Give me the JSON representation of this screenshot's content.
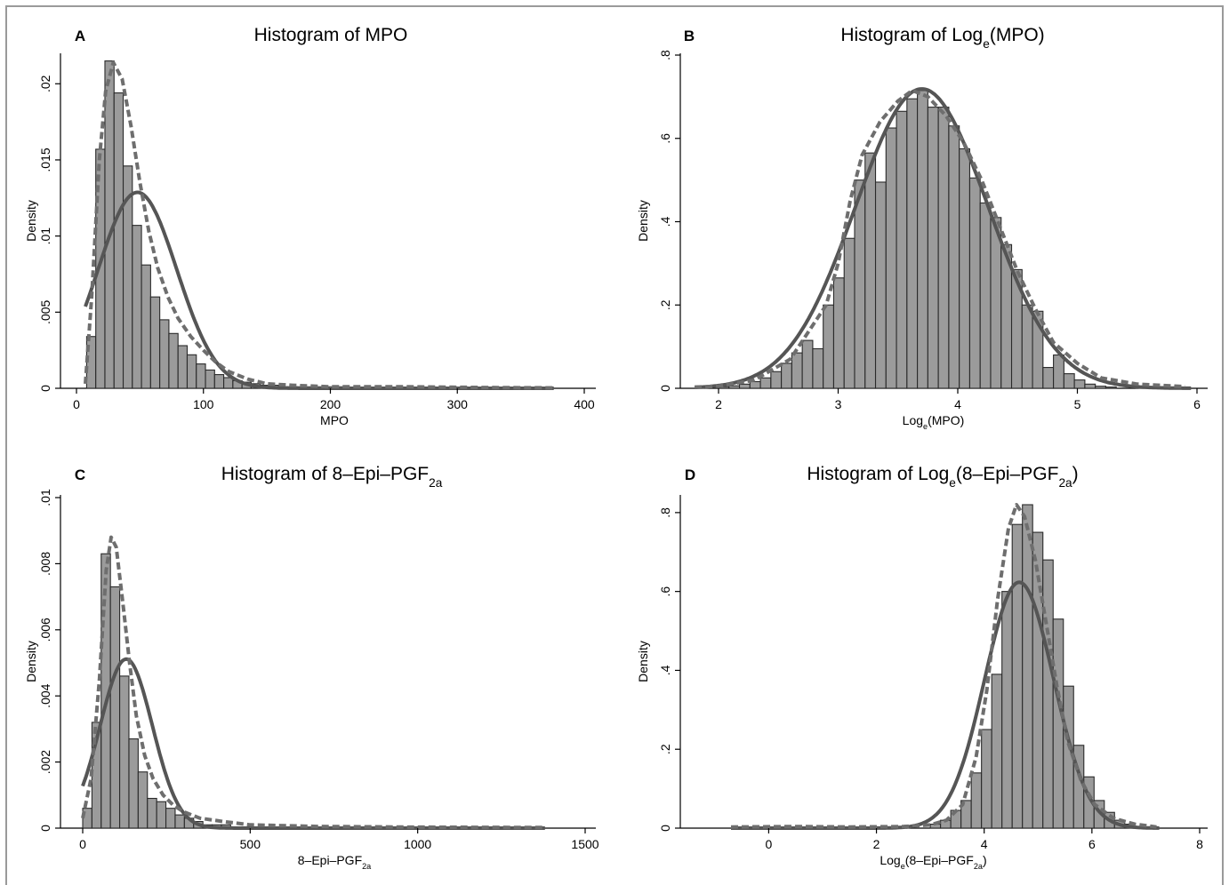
{
  "figure": {
    "panels": [
      {
        "letter": "A",
        "title_parts": [
          "Histogram of MPO"
        ],
        "xlabel_parts": [
          "MPO"
        ]
      },
      {
        "letter": "B",
        "title_parts": [
          "Histogram of Log",
          "e",
          "(MPO)"
        ],
        "xlabel_parts": [
          "Log",
          "e",
          "(MPO)"
        ]
      },
      {
        "letter": "C",
        "title_parts": [
          "Histogram of 8–Epi–PGF",
          "2a",
          ""
        ],
        "xlabel_parts": [
          "8–Epi–PGF",
          "2a",
          ""
        ]
      },
      {
        "letter": "D",
        "title_parts": [
          "Histogram of Log",
          "e",
          "(8–Epi–PGF",
          "2a",
          ")"
        ],
        "xlabel_parts": [
          "Log",
          "e",
          "(8–Epi–PGF",
          "2a",
          ")"
        ]
      }
    ]
  },
  "colors": {
    "bar_fill": "#9b9b9b",
    "bar_stroke": "#2a2a2a",
    "normal_curve": "#555555",
    "kde_curve": "#6e6e6e"
  },
  "chart_data": [
    {
      "type": "bar",
      "panel": "A",
      "title": "Histogram of MPO",
      "xlabel": "MPO",
      "ylabel": "Density",
      "xlim": [
        0,
        400
      ],
      "ylim": [
        0,
        0.022
      ],
      "xticks": [
        0,
        100,
        200,
        300,
        400
      ],
      "yticks": [
        0,
        0.005,
        0.01,
        0.015,
        0.02
      ],
      "ytick_labels": [
        "0",
        ".005",
        ".01",
        ".015",
        ".02"
      ],
      "bin_start": 8,
      "bin_width": 7.2,
      "values": [
        0.0034,
        0.0157,
        0.0215,
        0.0194,
        0.0146,
        0.0107,
        0.0081,
        0.006,
        0.0045,
        0.0036,
        0.0028,
        0.0022,
        0.0016,
        0.0012,
        0.0009,
        0.0007,
        0.0005,
        0.0004,
        0.0003,
        0.0002,
        0.0002,
        0.0001,
        0.0001,
        0.0001,
        0.0001,
        0.0001,
        0.0001,
        0.0001
      ],
      "normal_mean": 48,
      "normal_sd": 31,
      "kde_points": [
        [
          7,
          0.0003
        ],
        [
          12,
          0.006
        ],
        [
          18,
          0.015
        ],
        [
          23,
          0.0195
        ],
        [
          29,
          0.0214
        ],
        [
          36,
          0.0203
        ],
        [
          43,
          0.0172
        ],
        [
          50,
          0.0135
        ],
        [
          57,
          0.0103
        ],
        [
          64,
          0.0079
        ],
        [
          72,
          0.006
        ],
        [
          80,
          0.0046
        ],
        [
          90,
          0.0034
        ],
        [
          100,
          0.0025
        ],
        [
          110,
          0.0017
        ],
        [
          120,
          0.0011
        ],
        [
          135,
          0.0006
        ],
        [
          150,
          0.0003
        ],
        [
          170,
          0.0002
        ],
        [
          200,
          0.0001
        ],
        [
          260,
          0.0001
        ],
        [
          320,
          5e-05
        ],
        [
          376,
          3e-05
        ]
      ]
    },
    {
      "type": "bar",
      "panel": "B",
      "title": "Histogram of Loge(MPO)",
      "xlabel": "Loge(MPO)",
      "ylabel": "Density",
      "xlim": [
        2,
        6
      ],
      "ylim": [
        0,
        0.8
      ],
      "xticks": [
        2,
        3,
        4,
        5,
        6
      ],
      "yticks": [
        0,
        0.2,
        0.4,
        0.6,
        0.8
      ],
      "ytick_labels": [
        "0",
        ".2",
        ".4",
        ".6",
        ".8"
      ],
      "bin_start": 2.0,
      "bin_width": 0.0875,
      "values": [
        0.004,
        0.006,
        0.01,
        0.016,
        0.025,
        0.04,
        0.06,
        0.085,
        0.115,
        0.095,
        0.2,
        0.265,
        0.36,
        0.5,
        0.565,
        0.495,
        0.625,
        0.665,
        0.695,
        0.715,
        0.675,
        0.675,
        0.63,
        0.575,
        0.505,
        0.445,
        0.41,
        0.345,
        0.285,
        0.2,
        0.185,
        0.05,
        0.08,
        0.035,
        0.02,
        0.01,
        0.005,
        0.003
      ],
      "normal_mean": 3.7,
      "normal_sd": 0.555,
      "kde_points": [
        [
          1.8,
          0.003
        ],
        [
          2.0,
          0.005
        ],
        [
          2.3,
          0.02
        ],
        [
          2.6,
          0.07
        ],
        [
          2.9,
          0.2
        ],
        [
          3.0,
          0.3
        ],
        [
          3.1,
          0.45
        ],
        [
          3.2,
          0.56
        ],
        [
          3.35,
          0.64
        ],
        [
          3.5,
          0.69
        ],
        [
          3.62,
          0.715
        ],
        [
          3.75,
          0.7
        ],
        [
          3.9,
          0.655
        ],
        [
          4.05,
          0.59
        ],
        [
          4.2,
          0.5
        ],
        [
          4.35,
          0.39
        ],
        [
          4.5,
          0.28
        ],
        [
          4.65,
          0.19
        ],
        [
          4.8,
          0.11
        ],
        [
          5.0,
          0.06
        ],
        [
          5.2,
          0.025
        ],
        [
          5.5,
          0.01
        ],
        [
          5.9,
          0.004
        ]
      ]
    },
    {
      "type": "bar",
      "panel": "C",
      "title": "Histogram of 8–Epi–PGF2a",
      "xlabel": "8–Epi–PGF2a",
      "ylabel": "Density",
      "xlim": [
        0,
        1500
      ],
      "ylim": [
        0,
        0.01
      ],
      "xticks": [
        0,
        500,
        1000,
        1500
      ],
      "yticks": [
        0,
        0.002,
        0.004,
        0.006,
        0.008,
        0.01
      ],
      "ytick_labels": [
        "0",
        ".002",
        ".004",
        ".006",
        ".008",
        ".01"
      ],
      "bin_start": 0,
      "bin_width": 27.6,
      "values": [
        0.0006,
        0.0032,
        0.0083,
        0.0073,
        0.0046,
        0.0027,
        0.0017,
        0.0009,
        0.0008,
        0.0006,
        0.0004,
        0.0003,
        0.0002,
        0.0001,
        0.0001,
        0.0001
      ],
      "normal_mean": 130,
      "normal_sd": 78,
      "kde_points": [
        [
          0,
          0.0003
        ],
        [
          25,
          0.0015
        ],
        [
          50,
          0.0045
        ],
        [
          70,
          0.0078
        ],
        [
          85,
          0.0088
        ],
        [
          100,
          0.0085
        ],
        [
          120,
          0.0068
        ],
        [
          140,
          0.005
        ],
        [
          160,
          0.0034
        ],
        [
          185,
          0.0022
        ],
        [
          210,
          0.0015
        ],
        [
          240,
          0.001
        ],
        [
          270,
          0.0007
        ],
        [
          300,
          0.0005
        ],
        [
          350,
          0.0003
        ],
        [
          420,
          0.0002
        ],
        [
          500,
          0.0001
        ],
        [
          700,
          5e-05
        ],
        [
          1000,
          3e-05
        ],
        [
          1380,
          2e-05
        ]
      ]
    },
    {
      "type": "bar",
      "panel": "D",
      "title": "Histogram of Loge(8–Epi–PGF2a)",
      "xlabel": "Loge(8–Epi–PGF2a)",
      "ylabel": "Density",
      "xlim": [
        -0.7,
        8
      ],
      "ylim": [
        0,
        0.82
      ],
      "xticks": [
        0,
        2,
        4,
        6,
        8
      ],
      "yticks": [
        0,
        0.2,
        0.4,
        0.6,
        0.8
      ],
      "ytick_labels": [
        "0",
        ".2",
        ".4",
        ".6",
        ".8"
      ],
      "bin_start": 3.0,
      "bin_width": 0.19,
      "values": [
        0.01,
        0.02,
        0.045,
        0.07,
        0.14,
        0.25,
        0.39,
        0.6,
        0.77,
        0.82,
        0.75,
        0.68,
        0.53,
        0.36,
        0.21,
        0.13,
        0.07,
        0.04,
        0.02,
        0.01
      ],
      "normal_mean": 4.65,
      "normal_sd": 0.64,
      "kde_points": [
        [
          -0.7,
          0.003
        ],
        [
          0.5,
          0.004
        ],
        [
          1.5,
          0.003
        ],
        [
          2.5,
          0.004
        ],
        [
          3.0,
          0.008
        ],
        [
          3.3,
          0.02
        ],
        [
          3.6,
          0.06
        ],
        [
          3.85,
          0.18
        ],
        [
          4.05,
          0.35
        ],
        [
          4.25,
          0.58
        ],
        [
          4.45,
          0.76
        ],
        [
          4.6,
          0.82
        ],
        [
          4.75,
          0.79
        ],
        [
          4.95,
          0.68
        ],
        [
          5.15,
          0.52
        ],
        [
          5.35,
          0.36
        ],
        [
          5.55,
          0.22
        ],
        [
          5.8,
          0.12
        ],
        [
          6.05,
          0.06
        ],
        [
          6.4,
          0.025
        ],
        [
          6.8,
          0.01
        ],
        [
          7.2,
          0.003
        ]
      ]
    }
  ]
}
